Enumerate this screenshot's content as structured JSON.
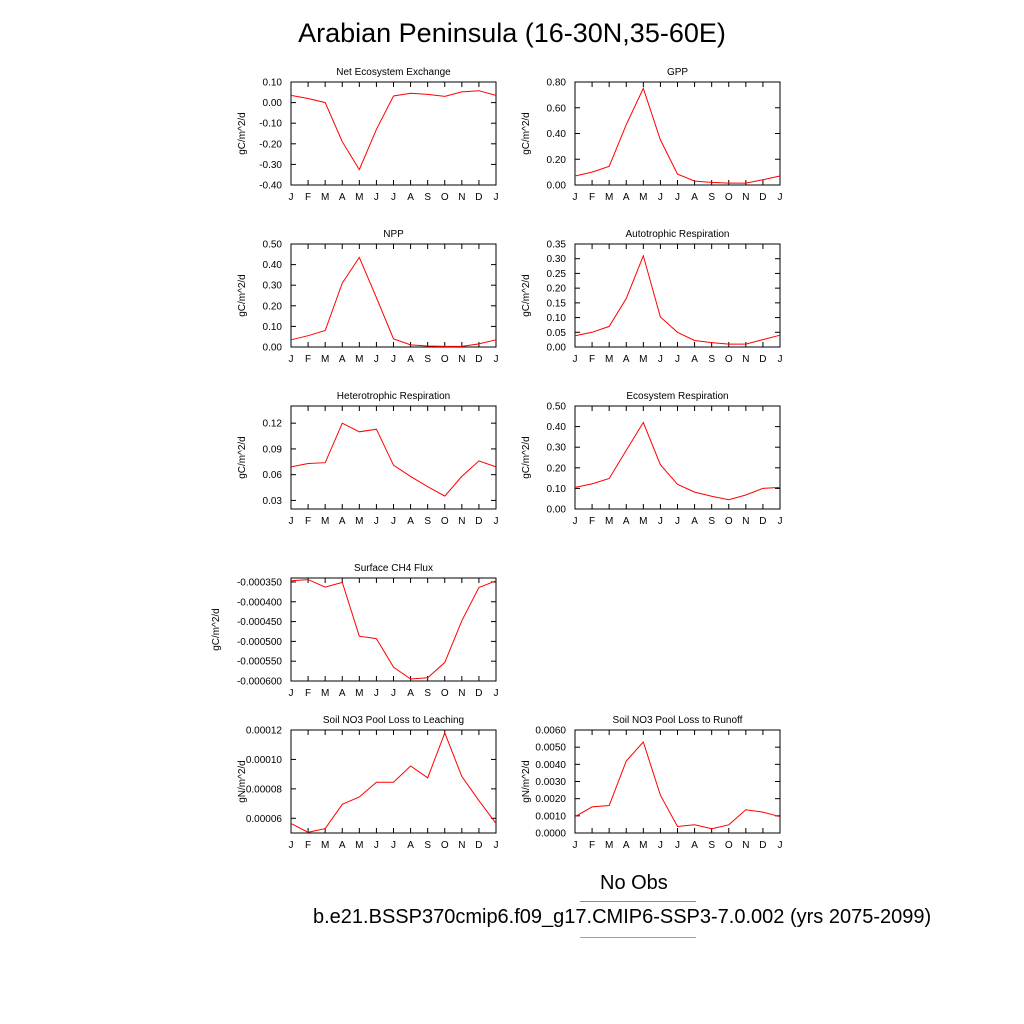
{
  "title": "Arabian Peninsula (16-30N,35-60E)",
  "months": [
    "J",
    "F",
    "M",
    "A",
    "M",
    "J",
    "J",
    "A",
    "S",
    "O",
    "N",
    "D",
    "J"
  ],
  "colors": {
    "model": "#ff0000",
    "obs_line": "#8080e0",
    "model_line": "#f08080"
  },
  "legend": {
    "obs_label": "No Obs",
    "case_label": "b.e21.BSSP370cmip6.f09_g17.CMIP6-SSP3-7.0.002 (yrs 2075-2099)"
  },
  "chart_data": [
    {
      "type": "line",
      "title": "Net Ecosystem Exchange",
      "ylabel": "gC/m^2/d",
      "ylim": [
        -0.4,
        0.1
      ],
      "yticks": [
        0.1,
        0.0,
        -0.1,
        -0.2,
        -0.3,
        -0.4
      ],
      "ytick_labels": [
        "0.10",
        "0.00",
        "-0.10",
        "-0.20",
        "-0.30",
        "-0.40"
      ],
      "series": [
        {
          "values": [
            0.035,
            0.02,
            0.0,
            -0.19,
            -0.325,
            -0.13,
            0.032,
            0.045,
            0.04,
            0.03,
            0.052,
            0.058,
            0.035
          ]
        }
      ]
    },
    {
      "type": "line",
      "title": "GPP",
      "ylabel": "gC/m^2/d",
      "ylim": [
        0.0,
        0.8
      ],
      "yticks": [
        0.8,
        0.6,
        0.4,
        0.2,
        0.0
      ],
      "ytick_labels": [
        "0.80",
        "0.60",
        "0.40",
        "0.20",
        "0.00"
      ],
      "series": [
        {
          "values": [
            0.07,
            0.1,
            0.145,
            0.47,
            0.75,
            0.35,
            0.085,
            0.03,
            0.02,
            0.015,
            0.015,
            0.04,
            0.07
          ]
        }
      ]
    },
    {
      "type": "line",
      "title": "NPP",
      "ylabel": "gC/m^2/d",
      "ylim": [
        0.0,
        0.5
      ],
      "yticks": [
        0.5,
        0.4,
        0.3,
        0.2,
        0.1,
        0.0
      ],
      "ytick_labels": [
        "0.50",
        "0.40",
        "0.30",
        "0.20",
        "0.10",
        "0.00"
      ],
      "series": [
        {
          "values": [
            0.035,
            0.055,
            0.08,
            0.31,
            0.435,
            0.24,
            0.04,
            0.01,
            0.005,
            0.003,
            0.003,
            0.015,
            0.035
          ]
        }
      ]
    },
    {
      "type": "line",
      "title": "Autotrophic Respiration",
      "ylabel": "gC/m^2/d",
      "ylim": [
        0.0,
        0.35
      ],
      "yticks": [
        0.35,
        0.3,
        0.25,
        0.2,
        0.15,
        0.1,
        0.05,
        0.0
      ],
      "ytick_labels": [
        "0.35",
        "0.30",
        "0.25",
        "0.20",
        "0.15",
        "0.10",
        "0.05",
        "0.00"
      ],
      "series": [
        {
          "values": [
            0.038,
            0.05,
            0.07,
            0.165,
            0.31,
            0.102,
            0.05,
            0.022,
            0.015,
            0.01,
            0.01,
            0.025,
            0.04
          ]
        }
      ]
    },
    {
      "type": "line",
      "title": "Heterotrophic Respiration",
      "ylabel": "gC/m^2/d",
      "ylim": [
        0.02,
        0.14
      ],
      "yticks": [
        0.12,
        0.09,
        0.06,
        0.03
      ],
      "ytick_labels": [
        "0.12",
        "0.09",
        "0.06",
        "0.03"
      ],
      "series": [
        {
          "values": [
            0.069,
            0.073,
            0.074,
            0.12,
            0.11,
            0.113,
            0.071,
            0.058,
            0.046,
            0.035,
            0.058,
            0.076,
            0.069
          ]
        }
      ]
    },
    {
      "type": "line",
      "title": "Ecosystem Respiration",
      "ylabel": "gC/m^2/d",
      "ylim": [
        0.0,
        0.5
      ],
      "yticks": [
        0.5,
        0.4,
        0.3,
        0.2,
        0.1,
        0.0
      ],
      "ytick_labels": [
        "0.50",
        "0.40",
        "0.30",
        "0.20",
        "0.10",
        "0.00"
      ],
      "series": [
        {
          "values": [
            0.105,
            0.122,
            0.148,
            0.285,
            0.42,
            0.215,
            0.12,
            0.082,
            0.062,
            0.045,
            0.068,
            0.1,
            0.105
          ]
        }
      ]
    },
    {
      "type": "line",
      "title": "Surface CH4 Flux",
      "ylabel": "gC/m^2/d",
      "ylim": [
        -0.0006,
        -0.00034
      ],
      "yticks": [
        -0.00035,
        -0.0004,
        -0.00045,
        -0.0005,
        -0.00055,
        -0.0006
      ],
      "ytick_labels": [
        "-0.000350",
        "-0.000400",
        "-0.000450",
        "-0.000500",
        "-0.000550",
        "-0.000600"
      ],
      "series": [
        {
          "values": [
            -0.000347,
            -0.000344,
            -0.000363,
            -0.000351,
            -0.000487,
            -0.000493,
            -0.000565,
            -0.000595,
            -0.000592,
            -0.000553,
            -0.000448,
            -0.000364,
            -0.000347
          ]
        }
      ]
    },
    {
      "type": "line",
      "title": "Soil NO3 Pool Loss to Leaching",
      "ylabel": "gN/m^2/d",
      "ylim": [
        5e-05,
        0.00012
      ],
      "yticks": [
        0.00012,
        0.0001,
        8e-05,
        6e-05
      ],
      "ytick_labels": [
        "0.00012",
        "0.00010",
        "0.00008",
        "0.00006"
      ],
      "series": [
        {
          "values": [
            5.65e-05,
            5.05e-05,
            5.3e-05,
            6.95e-05,
            7.45e-05,
            8.45e-05,
            8.45e-05,
            9.55e-05,
            8.75e-05,
            0.000118,
            8.85e-05,
            7.2e-05,
            5.65e-05
          ]
        }
      ]
    },
    {
      "type": "line",
      "title": "Soil NO3 Pool Loss to Runoff",
      "ylabel": "gN/m^2/d",
      "ylim": [
        0.0,
        0.006
      ],
      "yticks": [
        0.006,
        0.005,
        0.004,
        0.003,
        0.002,
        0.001,
        0.0
      ],
      "ytick_labels": [
        "0.0060",
        "0.0050",
        "0.0040",
        "0.0030",
        "0.0020",
        "0.0010",
        "0.0000"
      ],
      "series": [
        {
          "values": [
            0.00095,
            0.00152,
            0.0016,
            0.0042,
            0.0053,
            0.0022,
            0.00038,
            0.00048,
            0.00025,
            0.00048,
            0.00135,
            0.00122,
            0.00095
          ]
        }
      ]
    }
  ]
}
